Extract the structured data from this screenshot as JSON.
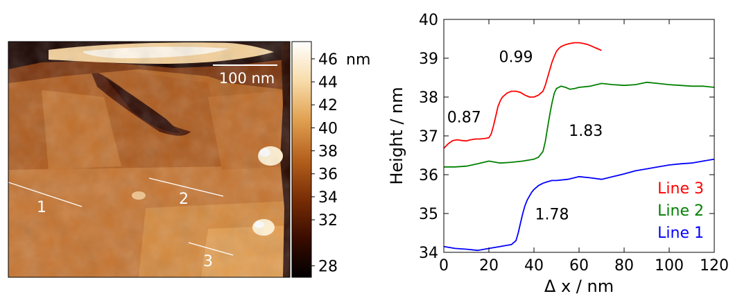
{
  "afm_image": {
    "scale_bar_label": "100 nm",
    "line_labels": [
      "1",
      "2",
      "3"
    ],
    "colorbar": {
      "unit": "nm",
      "ticks": [
        46,
        44,
        42,
        40,
        38,
        36,
        34,
        32,
        28
      ],
      "range": [
        27,
        47.5
      ],
      "colormap": [
        "#000000",
        "#3a0c00",
        "#7a2e05",
        "#b5601d",
        "#e0a050",
        "#f8dcaa",
        "#ffffff"
      ]
    }
  },
  "chart_data": {
    "type": "line",
    "title": "",
    "xlabel": "Δ x / nm",
    "ylabel": "Height / nm",
    "xlim": [
      0,
      120
    ],
    "ylim": [
      34,
      40
    ],
    "xticks": [
      0,
      20,
      40,
      60,
      80,
      100,
      120
    ],
    "yticks": [
      34,
      35,
      36,
      37,
      38,
      39,
      40
    ],
    "grid": false,
    "legend_position": "bottom-right",
    "series": [
      {
        "name": "Line 3",
        "color": "#ff0000",
        "x": [
          0,
          2,
          4,
          6,
          8,
          10,
          12,
          14,
          16,
          18,
          20,
          21,
          22,
          23,
          24,
          25,
          26,
          28,
          30,
          32,
          34,
          36,
          38,
          40,
          42,
          44,
          45,
          46,
          47,
          48,
          49,
          50,
          51,
          52,
          54,
          56,
          58,
          60,
          62,
          64,
          66,
          68,
          70
        ],
        "y": [
          36.68,
          36.8,
          36.88,
          36.9,
          36.88,
          36.87,
          36.9,
          36.92,
          36.92,
          36.93,
          36.95,
          37.05,
          37.25,
          37.5,
          37.75,
          37.9,
          38.0,
          38.1,
          38.15,
          38.15,
          38.12,
          38.05,
          38.0,
          38.0,
          38.05,
          38.15,
          38.3,
          38.5,
          38.7,
          38.9,
          39.05,
          39.18,
          39.25,
          39.3,
          39.35,
          39.38,
          39.4,
          39.4,
          39.38,
          39.35,
          39.3,
          39.25,
          39.2
        ]
      },
      {
        "name": "Line 2",
        "color": "#008000",
        "x": [
          0,
          5,
          10,
          15,
          20,
          25,
          30,
          35,
          40,
          42,
          44,
          45,
          46,
          47,
          48,
          49,
          50,
          52,
          54,
          56,
          58,
          60,
          65,
          70,
          75,
          80,
          85,
          90,
          95,
          100,
          105,
          110,
          115,
          120
        ],
        "y": [
          36.2,
          36.2,
          36.22,
          36.28,
          36.35,
          36.3,
          36.32,
          36.35,
          36.4,
          36.45,
          36.6,
          36.85,
          37.2,
          37.55,
          37.85,
          38.1,
          38.22,
          38.28,
          38.25,
          38.2,
          38.22,
          38.25,
          38.28,
          38.35,
          38.32,
          38.3,
          38.32,
          38.38,
          38.35,
          38.32,
          38.3,
          38.28,
          38.28,
          38.25
        ]
      },
      {
        "name": "Line 1",
        "color": "#0000ff",
        "x": [
          0,
          5,
          10,
          15,
          20,
          25,
          30,
          32,
          33,
          34,
          35,
          36,
          37,
          38,
          39,
          40,
          42,
          44,
          46,
          48,
          50,
          55,
          60,
          65,
          70,
          75,
          80,
          85,
          90,
          95,
          100,
          105,
          110,
          115,
          120
        ],
        "y": [
          34.15,
          34.1,
          34.08,
          34.05,
          34.1,
          34.15,
          34.2,
          34.3,
          34.5,
          34.75,
          35.0,
          35.2,
          35.35,
          35.45,
          35.55,
          35.62,
          35.72,
          35.78,
          35.82,
          35.85,
          35.85,
          35.88,
          35.95,
          35.92,
          35.88,
          35.95,
          36.02,
          36.1,
          36.15,
          36.2,
          36.25,
          36.28,
          36.3,
          36.35,
          36.4
        ]
      }
    ],
    "annotations": [
      {
        "text": "0.87",
        "x": 9,
        "y": 37.35
      },
      {
        "text": "0.99",
        "x": 32,
        "y": 38.9
      },
      {
        "text": "1.83",
        "x": 63,
        "y": 37.0
      },
      {
        "text": "1.78",
        "x": 48,
        "y": 34.85
      }
    ]
  }
}
